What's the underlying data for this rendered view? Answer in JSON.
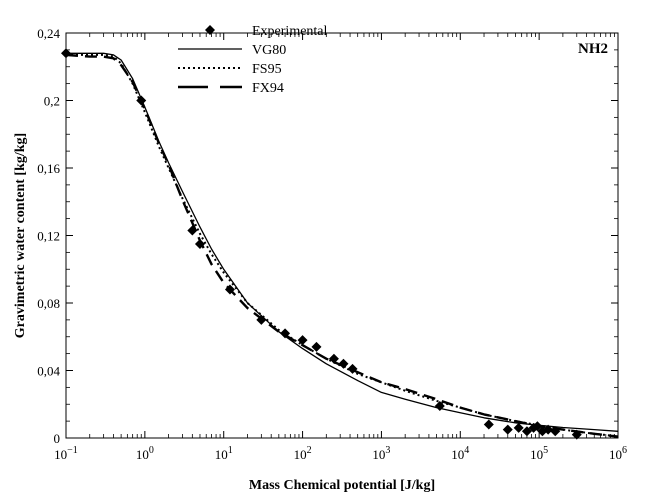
{
  "chart_data": {
    "type": "scatter",
    "panel_label": "NH2",
    "xlabel": "Mass Chemical potential [J/kg]",
    "ylabel": "Gravimetric water content [kg/kg]",
    "x_scale": "log",
    "xlim": [
      0.1,
      1000000
    ],
    "ylim": [
      0,
      0.24
    ],
    "x_ticks": [
      {
        "value": 0.1,
        "base": "10",
        "exp": "−1"
      },
      {
        "value": 1,
        "base": "10",
        "exp": "0"
      },
      {
        "value": 10,
        "base": "10",
        "exp": "1"
      },
      {
        "value": 100,
        "base": "10",
        "exp": "2"
      },
      {
        "value": 1000,
        "base": "10",
        "exp": "3"
      },
      {
        "value": 10000,
        "base": "10",
        "exp": "4"
      },
      {
        "value": 100000,
        "base": "10",
        "exp": "5"
      },
      {
        "value": 1000000,
        "base": "10",
        "exp": "6"
      }
    ],
    "y_ticks": [
      {
        "value": 0,
        "label": "0"
      },
      {
        "value": 0.04,
        "label": "0,04"
      },
      {
        "value": 0.08,
        "label": "0,08"
      },
      {
        "value": 0.12,
        "label": "0,12"
      },
      {
        "value": 0.16,
        "label": "0,16"
      },
      {
        "value": 0.2,
        "label": "0,2"
      },
      {
        "value": 0.24,
        "label": "0,24"
      }
    ],
    "grid": false,
    "legend": {
      "position": "top-center",
      "entries": [
        {
          "name": "Experimental",
          "style": "diamond-marker"
        },
        {
          "name": "VG80",
          "style": "solid"
        },
        {
          "name": "FS95",
          "style": "dotted"
        },
        {
          "name": "FX94",
          "style": "long-dash"
        }
      ]
    },
    "series": [
      {
        "name": "Experimental",
        "kind": "points",
        "color": "#000000",
        "points": [
          [
            0.1,
            0.228
          ],
          [
            0.9,
            0.2
          ],
          [
            4,
            0.123
          ],
          [
            5,
            0.115
          ],
          [
            12,
            0.088
          ],
          [
            30,
            0.07
          ],
          [
            60,
            0.062
          ],
          [
            100,
            0.058
          ],
          [
            150,
            0.054
          ],
          [
            250,
            0.047
          ],
          [
            330,
            0.044
          ],
          [
            430,
            0.041
          ],
          [
            5500,
            0.019
          ],
          [
            23000,
            0.008
          ],
          [
            40000,
            0.005
          ],
          [
            55000,
            0.006
          ],
          [
            70000,
            0.004
          ],
          [
            85000,
            0.006
          ],
          [
            95000,
            0.007
          ],
          [
            110000,
            0.004
          ],
          [
            130000,
            0.005
          ],
          [
            160000,
            0.004
          ],
          [
            300000,
            0.002
          ]
        ]
      },
      {
        "name": "VG80",
        "kind": "curve",
        "color": "#000000",
        "points": [
          [
            0.1,
            0.228
          ],
          [
            0.2,
            0.228
          ],
          [
            0.3,
            0.228
          ],
          [
            0.4,
            0.227
          ],
          [
            0.5,
            0.224
          ],
          [
            0.7,
            0.213
          ],
          [
            1,
            0.196
          ],
          [
            1.5,
            0.176
          ],
          [
            2,
            0.163
          ],
          [
            3,
            0.146
          ],
          [
            5,
            0.125
          ],
          [
            7,
            0.112
          ],
          [
            10,
            0.1
          ],
          [
            20,
            0.08
          ],
          [
            50,
            0.063
          ],
          [
            100,
            0.053
          ],
          [
            200,
            0.044
          ],
          [
            500,
            0.034
          ],
          [
            1000,
            0.027
          ],
          [
            2000,
            0.023
          ],
          [
            5000,
            0.018
          ],
          [
            10000,
            0.015
          ],
          [
            20000,
            0.012
          ],
          [
            50000,
            0.009
          ],
          [
            100000,
            0.0075
          ],
          [
            200000,
            0.0062
          ],
          [
            500000,
            0.005
          ],
          [
            1000000,
            0.004
          ]
        ]
      },
      {
        "name": "FS95",
        "kind": "curve",
        "color": "#000000",
        "points": [
          [
            0.1,
            0.227
          ],
          [
            0.2,
            0.227
          ],
          [
            0.3,
            0.227
          ],
          [
            0.4,
            0.226
          ],
          [
            0.5,
            0.222
          ],
          [
            0.7,
            0.21
          ],
          [
            1,
            0.193
          ],
          [
            1.5,
            0.173
          ],
          [
            2,
            0.16
          ],
          [
            3,
            0.142
          ],
          [
            5,
            0.121
          ],
          [
            7,
            0.109
          ],
          [
            10,
            0.098
          ],
          [
            20,
            0.08
          ],
          [
            50,
            0.064
          ],
          [
            100,
            0.055
          ],
          [
            200,
            0.047
          ],
          [
            500,
            0.038
          ],
          [
            1000,
            0.033
          ],
          [
            2000,
            0.028
          ],
          [
            5000,
            0.022
          ],
          [
            10000,
            0.018
          ],
          [
            20000,
            0.014
          ],
          [
            50000,
            0.01
          ],
          [
            100000,
            0.0075
          ],
          [
            200000,
            0.005
          ],
          [
            500000,
            0.0025
          ],
          [
            1000000,
            0.001
          ]
        ]
      },
      {
        "name": "FX94",
        "kind": "curve",
        "color": "#000000",
        "points": [
          [
            0.1,
            0.227
          ],
          [
            0.2,
            0.226
          ],
          [
            0.3,
            0.226
          ],
          [
            0.4,
            0.225
          ],
          [
            0.5,
            0.221
          ],
          [
            0.7,
            0.211
          ],
          [
            1,
            0.195
          ],
          [
            1.5,
            0.175
          ],
          [
            2,
            0.162
          ],
          [
            3,
            0.141
          ],
          [
            5,
            0.117
          ],
          [
            7,
            0.103
          ],
          [
            10,
            0.092
          ],
          [
            20,
            0.077
          ],
          [
            50,
            0.063
          ],
          [
            100,
            0.055
          ],
          [
            200,
            0.047
          ],
          [
            500,
            0.039
          ],
          [
            1000,
            0.033
          ],
          [
            2000,
            0.029
          ],
          [
            5000,
            0.023
          ],
          [
            10000,
            0.018
          ],
          [
            20000,
            0.014
          ],
          [
            50000,
            0.01
          ],
          [
            100000,
            0.007
          ],
          [
            200000,
            0.005
          ],
          [
            500000,
            0.0025
          ],
          [
            1000000,
            0.0008
          ]
        ]
      }
    ]
  }
}
